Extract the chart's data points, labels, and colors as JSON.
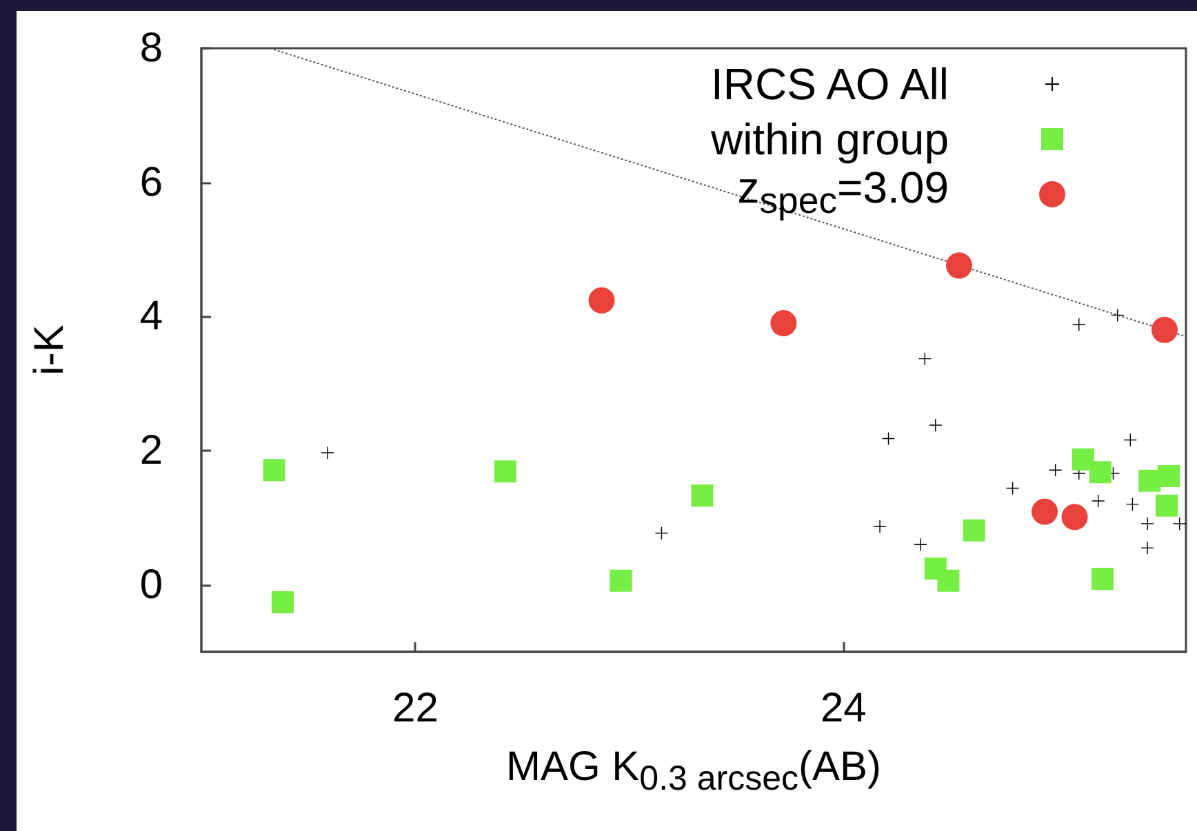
{
  "chart_data": {
    "type": "scatter",
    "xlabel": "MAG K$_{0.3 arcsec}$(AB)",
    "ylabel": "i-K",
    "xlim": [
      21,
      25.6
    ],
    "ylim": [
      -1,
      8
    ],
    "xticks": [
      22,
      24
    ],
    "yticks": [
      0,
      2,
      4,
      6,
      8
    ],
    "grid": false,
    "legend": "top right",
    "series": [
      {
        "type": "line",
        "color": "#555555",
        "line_style": "dotted",
        "marker": "none",
        "x": [
          21.32,
          25.6
        ],
        "values": [
          8,
          3.7
        ]
      },
      {
        "name": "IRCS AO All",
        "color": "#000000",
        "marker": "cross",
        "x": [
          21.59,
          23.15,
          24.38,
          24.21,
          24.43,
          24.17,
          24.36,
          25.1,
          25.28,
          25.34,
          24.99,
          25.1,
          25.26,
          24.79,
          25.19,
          25.35,
          25.42,
          25.57,
          25.42
        ],
        "values": [
          1.97,
          0.77,
          3.37,
          2.18,
          2.38,
          0.87,
          0.6,
          3.88,
          4.02,
          2.16,
          1.71,
          1.66,
          1.66,
          1.44,
          1.25,
          1.2,
          0.91,
          0.91,
          0.55
        ]
      },
      {
        "name": "within group",
        "color": "#77ee44",
        "marker": "square",
        "x": [
          21.34,
          21.38,
          22.42,
          22.96,
          23.34,
          24.61,
          24.43,
          24.49,
          25.12,
          25.2,
          25.43,
          25.52,
          25.51,
          25.21
        ],
        "values": [
          1.71,
          -0.26,
          1.69,
          0.06,
          1.33,
          0.81,
          0.24,
          0.06,
          1.87,
          1.68,
          1.55,
          1.62,
          1.18,
          0.09
        ]
      },
      {
        "name": "z$_{spec}$=3.09",
        "color": "#e8423a",
        "marker": "circle",
        "x": [
          22.87,
          23.72,
          24.54,
          25.5,
          24.94,
          25.08
        ],
        "values": [
          4.24,
          3.9,
          4.76,
          3.8,
          1.09,
          1.01
        ]
      }
    ]
  }
}
